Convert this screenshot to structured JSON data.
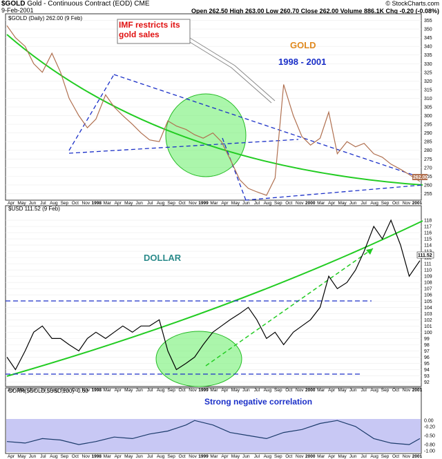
{
  "header": {
    "symbol": "$GOLD",
    "name": "Gold - Continuous Contract (EOD)",
    "exchange": "CME",
    "date": "9-Feb-2001",
    "quote": "Open 262.50  High 263.00  Low 260.70  Close 262.00  Volume 886.1K  Chg -0.20 (-0.08%)",
    "credit": "© StockCharts.com"
  },
  "colors": {
    "gold_line": "#b07050",
    "usd_line": "#000000",
    "trend_green": "#22cc22",
    "trend_blue": "#1a2fc8",
    "corr_fill": "#c8c8f4",
    "corr_line": "#1a3a6a",
    "callout_red": "#e01010",
    "gold_label": "#e08a20",
    "dollar_label": "#2a8a8a"
  },
  "x_axis": {
    "labels": [
      "Apr",
      "May",
      "Jun",
      "Jul",
      "Aug",
      "Sep",
      "Oct",
      "Nov",
      "1998",
      "Mar",
      "Apr",
      "May",
      "Jun",
      "Jul",
      "Aug",
      "Sep",
      "Oct",
      "Nov",
      "1999",
      "Mar",
      "Apr",
      "May",
      "Jun",
      "Jul",
      "Aug",
      "Sep",
      "Oct",
      "Nov",
      "2000",
      "Mar",
      "Apr",
      "May",
      "Jun",
      "Jul",
      "Aug",
      "Sep",
      "Oct",
      "Nov",
      "2001"
    ],
    "bold": [
      "1998",
      "1999",
      "2000",
      "2001"
    ]
  },
  "chart_data": [
    {
      "type": "line",
      "panel": "gold",
      "legend": "$GOLD (Daily) 262.00 (9 Feb)",
      "ylim": [
        252,
        358
      ],
      "yticks": [
        255,
        260,
        265,
        270,
        275,
        280,
        285,
        290,
        295,
        300,
        305,
        310,
        315,
        320,
        325,
        330,
        335,
        340,
        345,
        350,
        355
      ],
      "last_value": "262.00",
      "x": [
        1997.25,
        1997.33,
        1997.42,
        1997.5,
        1997.58,
        1997.67,
        1997.75,
        1997.83,
        1997.92,
        1998.0,
        1998.08,
        1998.17,
        1998.25,
        1998.33,
        1998.42,
        1998.5,
        1998.58,
        1998.67,
        1998.75,
        1998.83,
        1998.92,
        1999.0,
        1999.08,
        1999.17,
        1999.25,
        1999.33,
        1999.42,
        1999.5,
        1999.58,
        1999.67,
        1999.75,
        1999.83,
        1999.92,
        2000.0,
        2000.08,
        2000.17,
        2000.25,
        2000.33,
        2000.42,
        2000.5,
        2000.58,
        2000.67,
        2000.75,
        2000.83,
        2000.92,
        2001.0,
        2001.1
      ],
      "y": [
        352,
        345,
        340,
        330,
        325,
        336,
        325,
        310,
        300,
        293,
        298,
        312,
        305,
        300,
        295,
        290,
        286,
        285,
        297,
        294,
        292,
        289,
        287,
        290,
        285,
        275,
        263,
        258,
        256,
        254,
        264,
        318,
        300,
        288,
        283,
        287,
        302,
        278,
        285,
        282,
        284,
        278,
        276,
        272,
        269,
        266,
        262
      ],
      "annotations": {
        "callout": "IMF restricts its gold sales",
        "title": "GOLD",
        "period": "1998 - 2001"
      }
    },
    {
      "type": "line",
      "panel": "usd",
      "legend": "$USD 111.52 (9 Feb)",
      "ylim": [
        91.5,
        119
      ],
      "yticks": [
        92,
        93,
        94,
        95,
        96,
        97,
        98,
        99,
        100,
        101,
        102,
        103,
        104,
        105,
        106,
        107,
        108,
        109,
        110,
        111,
        112,
        113,
        114,
        115,
        116,
        117,
        118
      ],
      "last_value": "111.52",
      "x": [
        1997.25,
        1997.33,
        1997.42,
        1997.5,
        1997.58,
        1997.67,
        1997.75,
        1997.83,
        1997.92,
        1998.0,
        1998.08,
        1998.17,
        1998.25,
        1998.33,
        1998.42,
        1998.5,
        1998.58,
        1998.67,
        1998.75,
        1998.83,
        1998.92,
        1999.0,
        1999.08,
        1999.17,
        1999.25,
        1999.33,
        1999.42,
        1999.5,
        1999.58,
        1999.67,
        1999.75,
        1999.83,
        1999.92,
        2000.0,
        2000.08,
        2000.17,
        2000.25,
        2000.33,
        2000.42,
        2000.5,
        2000.58,
        2000.67,
        2000.75,
        2000.83,
        2000.92,
        2001.0,
        2001.1
      ],
      "y": [
        96,
        94,
        97,
        100,
        101,
        99,
        99,
        98,
        97,
        99,
        100,
        99,
        100,
        101,
        100,
        101,
        101,
        102,
        97,
        94,
        95,
        96,
        98,
        100,
        101,
        102,
        103,
        104,
        102,
        99,
        100,
        98,
        100,
        101,
        102,
        104,
        109,
        107,
        108,
        110,
        113,
        117,
        115,
        118,
        114,
        109,
        111.5
      ],
      "annotations": {
        "title": "DOLLAR"
      }
    },
    {
      "type": "area",
      "panel": "corr",
      "legend": "CORR($GOLD,$USD,200) -0.60",
      "ylim": [
        -1.05,
        0.05
      ],
      "yticks": [
        "0.00",
        "-0.20",
        "-0.50",
        "-0.80",
        "-1.00"
      ],
      "last_value": "-0.60",
      "x": [
        1997.25,
        1997.42,
        1997.58,
        1997.75,
        1997.92,
        1998.08,
        1998.25,
        1998.42,
        1998.58,
        1998.75,
        1998.92,
        1999.0,
        1999.17,
        1999.33,
        1999.5,
        1999.67,
        1999.83,
        2000.0,
        2000.17,
        2000.33,
        2000.5,
        2000.67,
        2000.83,
        2001.0,
        2001.1
      ],
      "y": [
        -0.7,
        -0.75,
        -0.6,
        -0.65,
        -0.8,
        -0.7,
        -0.55,
        -0.6,
        -0.45,
        -0.35,
        -0.15,
        0.0,
        -0.15,
        -0.4,
        -0.5,
        -0.6,
        -0.4,
        -0.3,
        -0.1,
        0.0,
        -0.2,
        -0.6,
        -0.75,
        -0.8,
        -0.6
      ],
      "annotations": {
        "caption": "Strong negative correlation"
      }
    }
  ]
}
